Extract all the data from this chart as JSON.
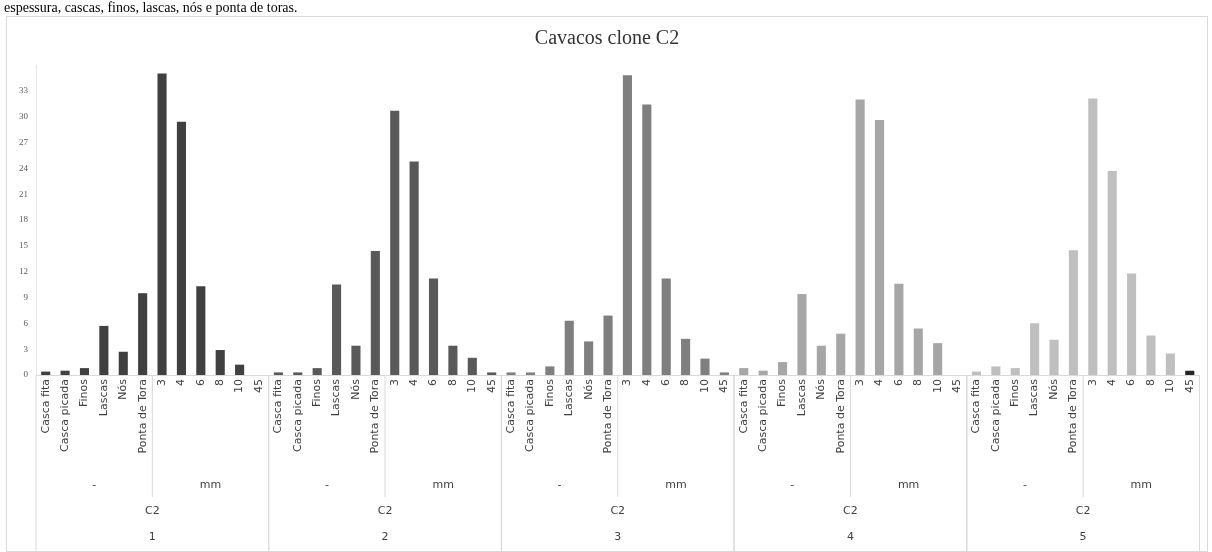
{
  "chart_data": {
    "type": "bar",
    "title": "Cavacos clone C2",
    "subtitle": "espessura, cascas, finos, lascas, nós e ponta de toras.",
    "categories": [
      "Casca fita",
      "Casca picada",
      "Finos",
      "Lascas",
      "Nós",
      "Ponta de Tora",
      "3",
      "4",
      "6",
      "8",
      "10",
      "45",
      "Casca fita",
      "Casca picada",
      "Finos",
      "Lascas",
      "Nós",
      "Ponta de Tora",
      "3",
      "4",
      "6",
      "8",
      "10",
      "45",
      "Casca fita",
      "Casca picada",
      "Finos",
      "Lascas",
      "Nós",
      "Ponta de Tora",
      "3",
      "4",
      "6",
      "8",
      "10",
      "45",
      "Casca fita",
      "Casca picada",
      "Finos",
      "Lascas",
      "Nós",
      "Ponta de Tora",
      "3",
      "4",
      "6",
      "8",
      "10",
      "45",
      "Casca fita",
      "Casca picada",
      "Finos",
      "Lascas",
      "Nós",
      "Ponta de Tora",
      "3",
      "4",
      "6",
      "8",
      "10",
      "45"
    ],
    "values": [
      0.4,
      0.5,
      0.8,
      5.7,
      2.7,
      9.5,
      35.0,
      29.4,
      10.3,
      2.9,
      1.2,
      0,
      0.3,
      0.3,
      0.8,
      10.5,
      3.4,
      14.4,
      30.7,
      24.8,
      11.2,
      3.4,
      2.0,
      0.3,
      0.3,
      0.3,
      1.0,
      6.3,
      3.9,
      6.9,
      34.8,
      31.4,
      11.2,
      4.2,
      1.9,
      0.3,
      0.8,
      0.5,
      1.5,
      9.4,
      3.4,
      4.8,
      32.0,
      29.6,
      10.6,
      5.4,
      3.7,
      0,
      0.4,
      1.0,
      0.8,
      6.0,
      4.1,
      14.5,
      32.1,
      23.7,
      11.8,
      4.6,
      2.5,
      0.5
    ],
    "colors": [
      "#404040",
      "#404040",
      "#404040",
      "#404040",
      "#404040",
      "#404040",
      "#404040",
      "#404040",
      "#404040",
      "#404040",
      "#404040",
      "#404040",
      "#595959",
      "#595959",
      "#595959",
      "#595959",
      "#595959",
      "#595959",
      "#595959",
      "#595959",
      "#595959",
      "#595959",
      "#595959",
      "#595959",
      "#7f7f7f",
      "#7f7f7f",
      "#7f7f7f",
      "#7f7f7f",
      "#7f7f7f",
      "#7f7f7f",
      "#7f7f7f",
      "#7f7f7f",
      "#7f7f7f",
      "#7f7f7f",
      "#7f7f7f",
      "#7f7f7f",
      "#a6a6a6",
      "#a6a6a6",
      "#a6a6a6",
      "#a6a6a6",
      "#a6a6a6",
      "#a6a6a6",
      "#a6a6a6",
      "#a6a6a6",
      "#a6a6a6",
      "#a6a6a6",
      "#a6a6a6",
      "#a6a6a6",
      "#bfbfbf",
      "#bfbfbf",
      "#bfbfbf",
      "#bfbfbf",
      "#bfbfbf",
      "#bfbfbf",
      "#bfbfbf",
      "#bfbfbf",
      "#bfbfbf",
      "#bfbfbf",
      "#bfbfbf",
      "#262626"
    ],
    "ylim": [
      0,
      36
    ],
    "yticks": [
      0,
      3,
      6,
      9,
      12,
      15,
      18,
      21,
      24,
      27,
      30,
      33
    ],
    "grid": false,
    "legend": false,
    "annotations": [
      "-",
      "mm",
      "C2",
      "1",
      "-",
      "mm",
      "C2",
      "2",
      "-",
      "mm",
      "C2",
      "3",
      "-",
      "mm",
      "C2",
      "4",
      "-",
      "mm",
      "C2",
      "5"
    ]
  }
}
